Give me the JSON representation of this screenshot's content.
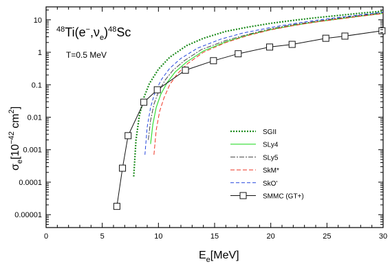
{
  "chart_data": {
    "type": "line",
    "title_parts": {
      "pre_sup": "48",
      "main": "Ti(e",
      "main_sup": "−",
      "mid": ",ν",
      "mid_sub": "e",
      "close": ")",
      "post_sup": "48",
      "tail": "Sc"
    },
    "annotation": "T=0.5 MeV",
    "xlabel": {
      "base": "E",
      "sub": "e",
      "unit": "[MeV]"
    },
    "ylabel": {
      "base": "σ",
      "sub": "e",
      "open": "[10",
      "sup": "−42",
      "mid": " cm",
      "sup2": "2",
      "close": "]"
    },
    "xlim": [
      0,
      30
    ],
    "ylim": [
      4e-06,
      25
    ],
    "yscale": "log",
    "xticks": [
      0,
      5,
      10,
      15,
      20,
      25,
      30
    ],
    "yticks": [
      {
        "value": 1e-05,
        "label": "0.00001"
      },
      {
        "value": 0.0001,
        "label": "0.0001"
      },
      {
        "value": 0.001,
        "label": "0.001"
      },
      {
        "value": 0.01,
        "label": "0.01"
      },
      {
        "value": 0.1,
        "label": "0.1"
      },
      {
        "value": 1,
        "label": "1"
      },
      {
        "value": 10,
        "label": "10"
      }
    ],
    "legend_position": "center-right",
    "series": [
      {
        "name": "SGII",
        "color": "#1a8a1a",
        "dash": "2,2",
        "width": 2.2,
        "marker": "none",
        "x": [
          7.8,
          8.0,
          8.3,
          8.7,
          9.2,
          10.0,
          11.0,
          12.5,
          14.0,
          16.0,
          18.0,
          20.0,
          22.0,
          24.0,
          26.0,
          28.0,
          30.0
        ],
        "y": [
          0.00015,
          0.002,
          0.011,
          0.04,
          0.11,
          0.3,
          0.7,
          1.6,
          2.7,
          4.4,
          6.0,
          7.8,
          9.6,
          11.6,
          13.6,
          16.0,
          18.5
        ]
      },
      {
        "name": "SLy4",
        "color": "#33dd33",
        "dash": "",
        "width": 1.2,
        "marker": "none",
        "x": [
          9.3,
          9.5,
          9.8,
          10.2,
          10.8,
          11.5,
          12.5,
          14.0,
          16.0,
          18.0,
          20.0,
          22.0,
          24.0,
          26.0,
          28.0,
          30.0
        ],
        "y": [
          0.0015,
          0.006,
          0.02,
          0.05,
          0.12,
          0.25,
          0.5,
          1.1,
          2.1,
          3.4,
          5.0,
          6.7,
          8.6,
          10.6,
          13.0,
          15.8
        ]
      },
      {
        "name": "SLy5",
        "color": "#444444",
        "dash": "7,2,2,2",
        "width": 1.0,
        "marker": "none",
        "x": [
          9.1,
          9.3,
          9.6,
          10.0,
          10.6,
          11.3,
          12.3,
          13.8,
          16.0,
          18.0,
          20.0,
          22.0,
          24.0,
          26.0,
          28.0,
          30.0
        ],
        "y": [
          0.002,
          0.008,
          0.025,
          0.06,
          0.14,
          0.28,
          0.55,
          1.2,
          2.3,
          3.6,
          5.3,
          7.1,
          9.0,
          11.2,
          13.6,
          16.5
        ]
      },
      {
        "name": "SkM*",
        "color": "#ee3322",
        "dash": "6,3",
        "width": 1.0,
        "marker": "none",
        "x": [
          9.6,
          9.8,
          10.1,
          10.5,
          11.0,
          11.7,
          12.6,
          14.0,
          16.0,
          18.0,
          20.0,
          22.0,
          24.0,
          26.0,
          28.0,
          30.0
        ],
        "y": [
          0.0007,
          0.004,
          0.015,
          0.04,
          0.1,
          0.22,
          0.45,
          1.0,
          2.0,
          3.3,
          4.9,
          6.6,
          8.5,
          10.5,
          12.9,
          15.6
        ]
      },
      {
        "name": "SkO'",
        "color": "#2244dd",
        "dash": "5,3",
        "width": 1.0,
        "marker": "none",
        "x": [
          8.8,
          9.0,
          9.3,
          9.7,
          10.3,
          11.0,
          12.0,
          13.5,
          15.5,
          17.5,
          20.0,
          22.0,
          24.0,
          26.0,
          28.0,
          30.0
        ],
        "y": [
          0.0007,
          0.005,
          0.02,
          0.06,
          0.15,
          0.32,
          0.65,
          1.35,
          2.5,
          3.9,
          5.8,
          7.6,
          9.6,
          11.8,
          14.3,
          17.2
        ]
      },
      {
        "name": "SMMC (GT+)",
        "color": "#111111",
        "dash": "",
        "width": 1.0,
        "marker": "square",
        "x": [
          6.3,
          6.8,
          7.3,
          8.7,
          9.9,
          12.4,
          14.9,
          17.1,
          19.9,
          21.9,
          24.9,
          26.6,
          29.9
        ],
        "y": [
          1.8e-05,
          0.00027,
          0.0027,
          0.029,
          0.07,
          0.28,
          0.55,
          0.9,
          1.45,
          1.75,
          2.7,
          3.15,
          4.6
        ]
      }
    ]
  }
}
